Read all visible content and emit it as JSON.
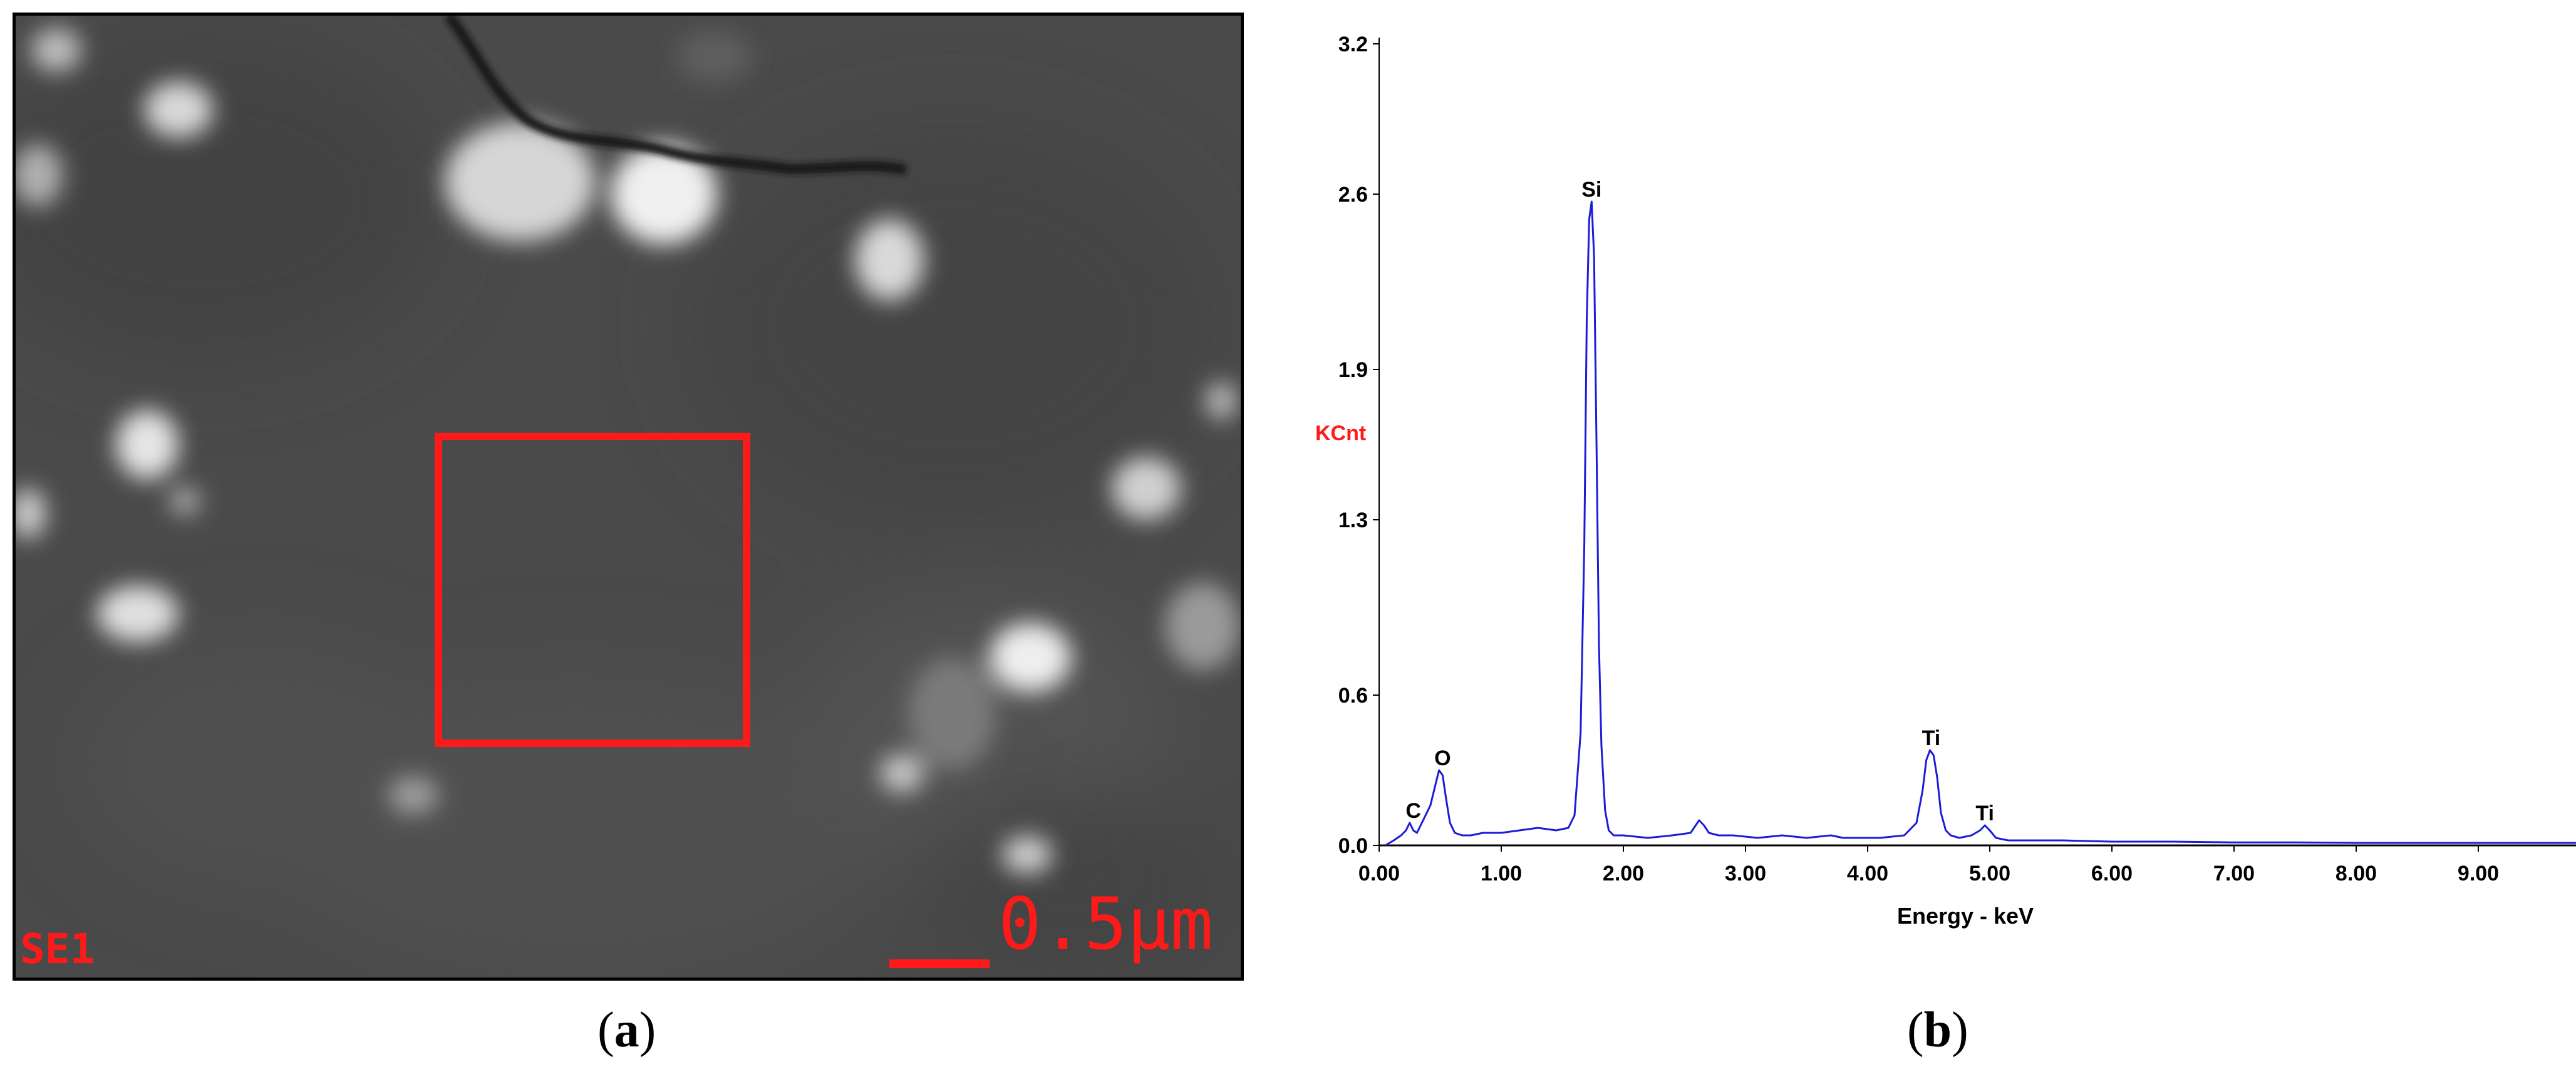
{
  "colors": {
    "spectrum_line": "#1c1cd8",
    "accent_red": "#ff1a1a",
    "axis": "#000000",
    "sem_background": "#4a4a4a"
  },
  "sem_image": {
    "detector_label": "SE1",
    "scale_bar_label": "0.5μm"
  },
  "captions": {
    "a": {
      "open": "(",
      "letter": "a",
      "close": ")"
    },
    "b": {
      "open": "(",
      "letter": "b",
      "close": ")"
    }
  },
  "chart_data": {
    "type": "line",
    "xlabel": "Energy - keV",
    "ylabel": "KCnt",
    "xlim": [
      0,
      9.8
    ],
    "ylim": [
      0,
      3.2
    ],
    "x_ticks": [
      "0.00",
      "1.00",
      "2.00",
      "3.00",
      "4.00",
      "5.00",
      "6.00",
      "7.00",
      "8.00",
      "9.00"
    ],
    "y_ticks": [
      "0.0",
      "0.6",
      "1.3",
      "1.9",
      "2.6",
      "3.2"
    ],
    "grid": false,
    "series": [
      {
        "x": [
          0.05,
          0.12,
          0.18,
          0.22,
          0.25,
          0.28,
          0.31,
          0.34,
          0.38,
          0.42,
          0.46,
          0.49,
          0.52,
          0.55,
          0.58,
          0.62,
          0.68,
          0.75,
          0.85,
          1.0,
          1.15,
          1.3,
          1.45,
          1.55,
          1.6,
          1.65,
          1.68,
          1.7,
          1.72,
          1.74,
          1.76,
          1.78,
          1.8,
          1.82,
          1.85,
          1.88,
          1.92,
          2.0,
          2.2,
          2.4,
          2.55,
          2.62,
          2.66,
          2.7,
          2.78,
          2.9,
          3.1,
          3.3,
          3.5,
          3.7,
          3.8,
          3.9,
          4.1,
          4.3,
          4.4,
          4.45,
          4.48,
          4.51,
          4.54,
          4.57,
          4.6,
          4.64,
          4.68,
          4.75,
          4.85,
          4.92,
          4.96,
          5.0,
          5.05,
          5.15,
          5.3,
          5.6,
          6.0,
          6.5,
          7.0,
          7.5,
          8.0,
          8.5,
          9.0,
          9.5,
          9.8
        ],
        "y": [
          0.0,
          0.02,
          0.04,
          0.06,
          0.09,
          0.06,
          0.05,
          0.08,
          0.12,
          0.16,
          0.24,
          0.3,
          0.28,
          0.18,
          0.09,
          0.05,
          0.04,
          0.04,
          0.05,
          0.05,
          0.06,
          0.07,
          0.06,
          0.07,
          0.12,
          0.45,
          1.2,
          2.1,
          2.5,
          2.57,
          2.35,
          1.6,
          0.8,
          0.4,
          0.14,
          0.06,
          0.04,
          0.04,
          0.03,
          0.04,
          0.05,
          0.1,
          0.08,
          0.05,
          0.04,
          0.04,
          0.03,
          0.04,
          0.03,
          0.04,
          0.03,
          0.03,
          0.03,
          0.04,
          0.09,
          0.22,
          0.34,
          0.38,
          0.36,
          0.27,
          0.13,
          0.06,
          0.04,
          0.03,
          0.04,
          0.06,
          0.08,
          0.06,
          0.03,
          0.02,
          0.02,
          0.02,
          0.015,
          0.015,
          0.012,
          0.012,
          0.01,
          0.01,
          0.01,
          0.01,
          0.01
        ]
      }
    ],
    "annotations": [
      {
        "text": "C",
        "x": 0.28,
        "y": 0.09
      },
      {
        "text": "O",
        "x": 0.52,
        "y": 0.3
      },
      {
        "text": "Si",
        "x": 1.74,
        "y": 2.57
      },
      {
        "text": "Ti",
        "x": 4.52,
        "y": 0.38
      },
      {
        "text": "Ti",
        "x": 4.96,
        "y": 0.08
      }
    ]
  }
}
